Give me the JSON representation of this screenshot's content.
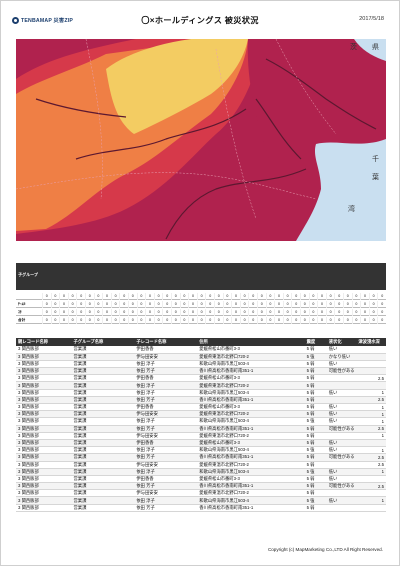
{
  "header": {
    "logo_text": "TENBAMAP 災害ZIP",
    "title": "〇×ホールディングス 被災状況",
    "date": "2017/5/18"
  },
  "map": {
    "colors": {
      "dark": "#b0224e",
      "red": "#d6394a",
      "orange": "#ef7f45",
      "yellow": "#f3cc62",
      "sea": "#c9dff0",
      "river": "#5c1830",
      "road": "#e9a0b2"
    },
    "labels": [
      "茨",
      "県",
      "千",
      "葉",
      "湾"
    ]
  },
  "summary": {
    "corner_label": "子グループ",
    "row_labels": [
      "",
      "ﾁｰﾑ5",
      "ｽﾀ",
      "合計"
    ],
    "values": [
      "0",
      "0",
      "0",
      "0",
      "0",
      "0",
      "0",
      "0",
      "0",
      "0",
      "0",
      "0",
      "0",
      "0",
      "0",
      "0",
      "0",
      "0",
      "0",
      "0",
      "0",
      "0",
      "0",
      "0",
      "0",
      "0",
      "0",
      "0",
      "0",
      "0",
      "0",
      "0",
      "0",
      "0",
      "0",
      "0",
      "0",
      "0",
      "0",
      "0"
    ]
  },
  "detail": {
    "columns": [
      "親レコード名称",
      "子グループ名称",
      "子レコード名称",
      "住所",
      "震度",
      "液状化",
      "津波浸水深"
    ],
    "rows": [
      [
        "3 関西販部",
        "営業課",
        "伊田香香",
        "愛媛県松山市番町3-3",
        "5 弱",
        "低い",
        ""
      ],
      [
        "3 関西販部",
        "営業課",
        "伊与田安安",
        "愛媛県東温市北野口720-2",
        "5 強",
        "かなり低い",
        ""
      ],
      [
        "3 関西販部",
        "営業課",
        "依田 淳子",
        "和歌山県海南市黒江503-4",
        "5 弱",
        "低い",
        ""
      ],
      [
        "3 関西販部",
        "営業課",
        "依田 芳子",
        "香川県高松市香南町南351-1",
        "5 弱",
        "可能性がある",
        ""
      ],
      [
        "3 関西販部",
        "営業課",
        "伊田香香",
        "愛媛県松山市番町3-3",
        "5 弱",
        "",
        "2.5"
      ],
      [
        "3 関西販部",
        "営業課",
        "依田 淳子",
        "愛媛県東温市北野口720-2",
        "5 弱",
        "",
        ""
      ],
      [
        "3 関西販部",
        "営業課",
        "依田 淳子",
        "和歌山県海南市黒江503-4",
        "5 弱",
        "低い",
        "1"
      ],
      [
        "3 関西販部",
        "営業課",
        "依田 芳子",
        "香川県高松市香南町南351-1",
        "5 弱",
        "",
        "2.5"
      ],
      [
        "3 関西販部",
        "営業課",
        "伊田香香",
        "愛媛県松山市番町3-3",
        "5 弱",
        "低い",
        "1"
      ],
      [
        "3 関西販部",
        "営業課",
        "伊与田安安",
        "愛媛県東温市北野口720-2",
        "5 弱",
        "低い",
        "1"
      ],
      [
        "3 関西販部",
        "営業課",
        "依田 淳子",
        "和歌山県海南市黒江503-4",
        "5 強",
        "低い",
        "1"
      ],
      [
        "3 関西販部",
        "営業課",
        "依田 芳子",
        "香川県高松市香南町南351-1",
        "5 弱",
        "可能性がある",
        "2.5"
      ],
      [
        "3 関西販部",
        "営業課",
        "伊与田安安",
        "愛媛県東温市北野口720-2",
        "5 弱",
        "",
        "1"
      ],
      [
        "3 関西販部",
        "営業課",
        "伊田香香",
        "愛媛県松山市番町3-3",
        "5 弱",
        "低い",
        ""
      ],
      [
        "3 関西販部",
        "営業課",
        "依田 淳子",
        "和歌山県海南市黒江503-4",
        "5 強",
        "低い",
        "1"
      ],
      [
        "3 関西販部",
        "営業課",
        "依田 芳子",
        "香川県高松市香南町南351-1",
        "5 弱",
        "可能性がある",
        "2.5"
      ],
      [
        "3 関西販部",
        "営業課",
        "伊与田安安",
        "愛媛県東温市北野口720-2",
        "5 弱",
        "",
        "2.5"
      ],
      [
        "3 関西販部",
        "営業課",
        "依田 淳子",
        "和歌山県海南市黒江503-4",
        "5 強",
        "低い",
        "1"
      ],
      [
        "3 関西販部",
        "営業課",
        "伊田香香",
        "愛媛県松山市番町3-3",
        "5 弱",
        "低い",
        ""
      ],
      [
        "3 関西販部",
        "営業課",
        "依田 芳子",
        "香川県高松市香南町南351-1",
        "5 弱",
        "可能性がある",
        "2.5"
      ],
      [
        "3 関西販部",
        "営業課",
        "伊与田安安",
        "愛媛県東温市北野口720-2",
        "5 弱",
        "",
        ""
      ],
      [
        "3 関西販部",
        "営業課",
        "依田 淳子",
        "和歌山県海南市黒江503-4",
        "5 強",
        "低い",
        "1"
      ],
      [
        "3 関西販部",
        "営業課",
        "依田 芳子",
        "香川県高松市香南町南351-1",
        "5 弱",
        "",
        ""
      ]
    ]
  },
  "footer": {
    "copyright": "Copyright (c) MapMarketing Co.,LTD All Right Reserved."
  }
}
